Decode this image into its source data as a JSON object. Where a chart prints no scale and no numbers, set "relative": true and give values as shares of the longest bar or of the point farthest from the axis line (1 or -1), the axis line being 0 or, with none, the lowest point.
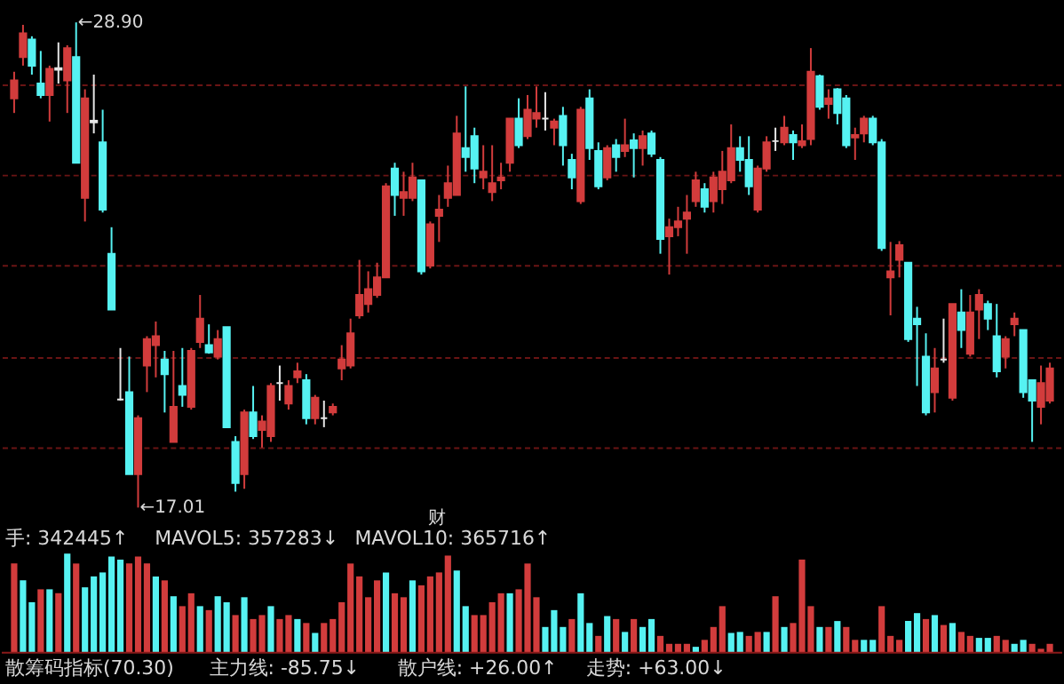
{
  "chart_data": [
    {
      "type": "candlestick",
      "categories": [
        null,
        null,
        null,
        null,
        null,
        null,
        null,
        null,
        null,
        null,
        null,
        null,
        null,
        null,
        null,
        null,
        null,
        null,
        null,
        null,
        null,
        null,
        null,
        null,
        null,
        null,
        null,
        null,
        null,
        null,
        null,
        null,
        null,
        null,
        null,
        null,
        null,
        null,
        null,
        null,
        null,
        null,
        null,
        null,
        null,
        null,
        null,
        null,
        null,
        null,
        null,
        null,
        null,
        null,
        null,
        null,
        null,
        null,
        null,
        null,
        null,
        null,
        null,
        null,
        null,
        null,
        null,
        null,
        null,
        null,
        null,
        null,
        null,
        null,
        null,
        null,
        null,
        null,
        null,
        null,
        null,
        null,
        null,
        null,
        null,
        null,
        null,
        null,
        null,
        null,
        null,
        null,
        null,
        null,
        null,
        null,
        null,
        null,
        null,
        null,
        null,
        null,
        null,
        null,
        null,
        null,
        null,
        null,
        null,
        null,
        null,
        null,
        null,
        null,
        null,
        null,
        null,
        null
      ],
      "ohlc": [
        [
          27.04,
          27.69,
          26.68,
          27.48
        ],
        [
          28.05,
          28.84,
          27.84,
          28.63
        ],
        [
          28.48,
          28.56,
          27.62,
          27.84
        ],
        [
          27.4,
          28.2,
          27.04,
          27.12
        ],
        [
          27.12,
          27.84,
          26.47,
          27.76
        ],
        [
          27.74,
          28.41,
          27.4,
          27.78
        ],
        [
          27.48,
          28.34,
          26.68,
          28.27
        ],
        [
          28.05,
          28.9,
          25.46,
          25.46
        ],
        [
          24.6,
          27.26,
          24.02,
          27.04
        ],
        [
          26.45,
          27.62,
          26.18,
          26.49
        ],
        [
          25.96,
          26.76,
          24.24,
          24.31
        ],
        [
          23.23,
          23.88,
          21.86,
          21.86
        ],
        [
          19.66,
          20.92,
          19.63,
          19.66
        ],
        [
          19.84,
          20.71,
          17.83,
          17.83
        ],
        [
          17.83,
          19.27,
          17.01,
          19.2
        ],
        [
          20.49,
          21.21,
          19.84,
          21.14
        ],
        [
          20.99,
          21.57,
          20.2,
          21.21
        ],
        [
          20.64,
          20.85,
          19.34,
          20.28
        ],
        [
          18.62,
          20.85,
          18.62,
          19.48
        ],
        [
          19.99,
          20.92,
          19.48,
          19.77
        ],
        [
          19.48,
          20.92,
          19.41,
          20.85
        ],
        [
          21.07,
          22.22,
          20.92,
          21.64
        ],
        [
          20.99,
          21.5,
          20.78,
          20.81
        ],
        [
          20.71,
          21.36,
          20.64,
          21.14
        ],
        [
          21.43,
          21.43,
          18.98,
          18.98
        ],
        [
          18.62,
          18.76,
          17.4,
          17.61
        ],
        [
          17.83,
          19.41,
          17.47,
          19.34
        ],
        [
          19.34,
          19.99,
          18.69,
          18.76
        ],
        [
          18.91,
          19.27,
          18.48,
          19.12
        ],
        [
          18.76,
          20.06,
          18.62,
          19.99
        ],
        [
          20.06,
          20.49,
          19.63,
          20.06
        ],
        [
          19.56,
          20.13,
          19.41,
          19.99
        ],
        [
          20.2,
          20.56,
          20.06,
          20.35
        ],
        [
          20.13,
          20.28,
          19.05,
          19.2
        ],
        [
          19.2,
          19.77,
          19.05,
          19.7
        ],
        [
          19.2,
          19.63,
          18.98,
          19.2
        ],
        [
          19.34,
          19.56,
          19.27,
          19.48
        ],
        [
          20.42,
          20.99,
          20.13,
          20.64
        ],
        [
          20.49,
          21.64,
          20.42,
          21.28
        ],
        [
          21.72,
          23.08,
          21.64,
          22.22
        ],
        [
          22.0,
          22.8,
          21.79,
          22.36
        ],
        [
          22.22,
          23.01,
          22.15,
          22.65
        ],
        [
          22.65,
          24.96,
          22.65,
          24.88
        ],
        [
          25.32,
          25.46,
          24.16,
          24.67
        ],
        [
          24.6,
          25.24,
          24.16,
          24.74
        ],
        [
          24.6,
          25.46,
          24.52,
          25.1
        ],
        [
          25.03,
          25.03,
          22.72,
          22.8
        ],
        [
          22.94,
          24.02,
          22.87,
          23.95
        ],
        [
          24.16,
          24.67,
          23.52,
          24.31
        ],
        [
          24.6,
          25.39,
          24.38,
          24.96
        ],
        [
          24.67,
          26.61,
          24.67,
          26.18
        ],
        [
          25.82,
          27.33,
          25.24,
          25.6
        ],
        [
          26.11,
          26.32,
          24.96,
          25.32
        ],
        [
          25.1,
          25.89,
          24.81,
          25.24
        ],
        [
          24.74,
          25.89,
          24.52,
          24.96
        ],
        [
          25.03,
          25.46,
          24.81,
          25.1
        ],
        [
          25.46,
          26.54,
          25.24,
          26.54
        ],
        [
          26.54,
          27.04,
          25.82,
          25.89
        ],
        [
          26.11,
          27.12,
          26.04,
          26.76
        ],
        [
          26.54,
          27.33,
          26.32,
          26.68
        ],
        [
          26.54,
          27.19,
          26.25,
          26.54
        ],
        [
          26.32,
          26.54,
          25.89,
          26.47
        ],
        [
          26.61,
          26.83,
          25.39,
          25.89
        ],
        [
          25.53,
          25.68,
          24.81,
          25.1
        ],
        [
          24.52,
          26.83,
          24.45,
          26.76
        ],
        [
          27.04,
          27.26,
          25.53,
          25.82
        ],
        [
          25.75,
          25.96,
          24.81,
          24.88
        ],
        [
          25.1,
          25.89,
          25.03,
          25.82
        ],
        [
          25.89,
          26.04,
          25.24,
          25.6
        ],
        [
          25.75,
          26.54,
          25.6,
          25.89
        ],
        [
          26.01,
          26.18,
          25.1,
          25.82
        ],
        [
          25.82,
          26.25,
          25.39,
          26.11
        ],
        [
          26.18,
          26.25,
          25.6,
          25.68
        ],
        [
          25.53,
          25.6,
          23.23,
          23.59
        ],
        [
          23.66,
          24.09,
          22.72,
          23.88
        ],
        [
          23.88,
          24.38,
          23.66,
          24.02
        ],
        [
          24.09,
          24.67,
          23.23,
          24.24
        ],
        [
          24.52,
          25.24,
          24.38,
          25.03
        ],
        [
          24.81,
          24.96,
          24.24,
          24.38
        ],
        [
          24.52,
          25.24,
          24.24,
          25.1
        ],
        [
          24.81,
          25.75,
          24.45,
          25.24
        ],
        [
          25.03,
          26.4,
          24.96,
          25.82
        ],
        [
          25.82,
          26.11,
          25.24,
          25.53
        ],
        [
          25.53,
          26.11,
          24.67,
          24.88
        ],
        [
          24.31,
          25.39,
          24.24,
          25.32
        ],
        [
          25.32,
          26.11,
          25.24,
          25.96
        ],
        [
          25.99,
          26.32,
          25.75,
          25.99
        ],
        [
          25.96,
          26.61,
          25.89,
          26.32
        ],
        [
          26.14,
          26.25,
          25.53,
          25.96
        ],
        [
          25.89,
          26.4,
          25.82,
          25.99
        ],
        [
          26.04,
          28.27,
          25.89,
          27.69
        ],
        [
          27.58,
          27.62,
          26.76,
          26.83
        ],
        [
          26.9,
          27.26,
          26.54,
          27.04
        ],
        [
          27.26,
          27.29,
          26.4,
          26.68
        ],
        [
          27.04,
          27.12,
          25.82,
          25.89
        ],
        [
          26.08,
          26.32,
          25.53,
          26.14
        ],
        [
          26.18,
          26.61,
          25.96,
          26.54
        ],
        [
          26.54,
          26.61,
          25.89,
          25.96
        ],
        [
          25.96,
          26.04,
          23.3,
          23.37
        ],
        [
          22.65,
          23.52,
          21.72,
          22.8
        ],
        [
          23.08,
          23.54,
          22.65,
          23.44
        ],
        [
          23.01,
          23.01,
          21.07,
          21.14
        ],
        [
          21.64,
          21.93,
          19.99,
          21.5
        ],
        [
          20.71,
          21.28,
          19.27,
          19.34
        ],
        [
          19.84,
          20.92,
          19.34,
          20.42
        ],
        [
          20.64,
          21.64,
          20.56,
          20.64
        ],
        [
          19.7,
          22.0,
          19.63,
          22.0
        ],
        [
          21.79,
          22.36,
          20.92,
          21.36
        ],
        [
          20.78,
          22.22,
          20.71,
          21.79
        ],
        [
          21.86,
          22.36,
          21.14,
          22.22
        ],
        [
          22.0,
          22.08,
          21.36,
          21.64
        ],
        [
          21.21,
          22.0,
          20.2,
          20.35
        ],
        [
          20.71,
          21.21,
          20.42,
          21.14
        ],
        [
          21.5,
          21.79,
          21.21,
          21.64
        ],
        [
          21.36,
          21.36,
          19.7,
          19.84
        ],
        [
          20.13,
          20.13,
          18.62,
          19.63
        ],
        [
          19.48,
          20.49,
          19.05,
          20.06
        ],
        [
          19.63,
          20.56,
          19.56,
          20.42
        ]
      ],
      "colors": [
        "#d23c3c",
        "#d23c3c",
        "#56f2f2",
        "#56f2f2",
        "#d23c3c",
        "#e6e6e6",
        "#d23c3c",
        "#56f2f2",
        "#d23c3c",
        "#e6e6e6",
        "#56f2f2",
        "#56f2f2",
        "#e6e6e6",
        "#56f2f2",
        "#d23c3c",
        "#d23c3c",
        "#d23c3c",
        "#56f2f2",
        "#d23c3c",
        "#56f2f2",
        "#d23c3c",
        "#d23c3c",
        "#56f2f2",
        "#d23c3c",
        "#56f2f2",
        "#56f2f2",
        "#d23c3c",
        "#56f2f2",
        "#d23c3c",
        "#d23c3c",
        "#e6e6e6",
        "#d23c3c",
        "#d23c3c",
        "#56f2f2",
        "#d23c3c",
        "#e6e6e6",
        "#d23c3c",
        "#d23c3c",
        "#d23c3c",
        "#d23c3c",
        "#d23c3c",
        "#d23c3c",
        "#d23c3c",
        "#56f2f2",
        "#d23c3c",
        "#d23c3c",
        "#56f2f2",
        "#d23c3c",
        "#d23c3c",
        "#d23c3c",
        "#d23c3c",
        "#56f2f2",
        "#56f2f2",
        "#d23c3c",
        "#d23c3c",
        "#d23c3c",
        "#d23c3c",
        "#56f2f2",
        "#d23c3c",
        "#d23c3c",
        "#e6e6e6",
        "#d23c3c",
        "#56f2f2",
        "#56f2f2",
        "#d23c3c",
        "#56f2f2",
        "#56f2f2",
        "#d23c3c",
        "#56f2f2",
        "#d23c3c",
        "#56f2f2",
        "#d23c3c",
        "#56f2f2",
        "#56f2f2",
        "#d23c3c",
        "#d23c3c",
        "#d23c3c",
        "#d23c3c",
        "#56f2f2",
        "#d23c3c",
        "#d23c3c",
        "#d23c3c",
        "#56f2f2",
        "#56f2f2",
        "#d23c3c",
        "#d23c3c",
        "#e6e6e6",
        "#d23c3c",
        "#56f2f2",
        "#d23c3c",
        "#d23c3c",
        "#56f2f2",
        "#d23c3c",
        "#56f2f2",
        "#56f2f2",
        "#d23c3c",
        "#d23c3c",
        "#56f2f2",
        "#56f2f2",
        "#d23c3c",
        "#d23c3c",
        "#56f2f2",
        "#56f2f2",
        "#56f2f2",
        "#d23c3c",
        "#e6e6e6",
        "#d23c3c",
        "#56f2f2",
        "#d23c3c",
        "#d23c3c",
        "#56f2f2",
        "#56f2f2",
        "#d23c3c",
        "#d23c3c",
        "#56f2f2",
        "#56f2f2",
        "#d23c3c",
        "#d23c3c"
      ],
      "yticks": [
        {
          "value": 18.48,
          "label": null
        },
        {
          "value": 20.71,
          "label": null
        },
        {
          "value": 22.94,
          "label": null
        },
        {
          "value": 25.17,
          "label": null
        },
        {
          "value": 27.4,
          "label": null
        }
      ],
      "grid": "y",
      "tick_labels": false,
      "annotations": [
        "←28.90",
        "←17.01",
        "财"
      ]
    },
    {
      "type": "bar",
      "relative": true,
      "tick_labels": false,
      "categories": [
        null,
        null,
        null,
        null,
        null,
        null,
        null,
        null,
        null,
        null,
        null,
        null,
        null,
        null,
        null,
        null,
        null,
        null,
        null,
        null,
        null,
        null,
        null,
        null,
        null,
        null,
        null,
        null,
        null,
        null,
        null,
        null,
        null,
        null,
        null,
        null,
        null,
        null,
        null,
        null,
        null,
        null,
        null,
        null,
        null,
        null,
        null,
        null,
        null,
        null,
        null,
        null,
        null,
        null,
        null,
        null,
        null,
        null,
        null,
        null,
        null,
        null,
        null,
        null,
        null,
        null,
        null,
        null,
        null,
        null,
        null,
        null,
        null,
        null,
        null,
        null,
        null,
        null,
        null,
        null,
        null,
        null,
        null,
        null,
        null,
        null,
        null,
        null,
        null,
        null,
        null,
        null,
        null,
        null,
        null,
        null,
        null,
        null,
        null,
        null,
        null,
        null,
        null,
        null,
        null,
        null,
        null,
        null,
        null,
        null,
        null,
        null,
        null,
        null,
        null,
        null,
        null,
        null
      ],
      "values": [
        0.9,
        0.73,
        0.51,
        0.64,
        0.64,
        0.6,
        1,
        0.9,
        0.66,
        0.77,
        0.81,
        0.97,
        0.94,
        0.9,
        0.97,
        0.9,
        0.77,
        0.73,
        0.57,
        0.47,
        0.6,
        0.47,
        0.43,
        0.57,
        0.51,
        0.38,
        0.56,
        0.34,
        0.38,
        0.47,
        0.34,
        0.38,
        0.34,
        0.3,
        0.2,
        0.3,
        0.34,
        0.51,
        0.9,
        0.77,
        0.56,
        0.73,
        0.81,
        0.6,
        0.56,
        0.73,
        0.68,
        0.77,
        0.81,
        0.98,
        0.83,
        0.47,
        0.38,
        0.38,
        0.51,
        0.6,
        0.6,
        0.64,
        0.9,
        0.56,
        0.26,
        0.43,
        0.26,
        0.34,
        0.6,
        0.3,
        0.17,
        0.37,
        0.34,
        0.21,
        0.34,
        0.26,
        0.34,
        0.17,
        0.09,
        0.09,
        0.09,
        0.06,
        0.13,
        0.26,
        0.47,
        0.2,
        0.21,
        0.17,
        0.21,
        0.21,
        0.57,
        0.26,
        0.3,
        0.94,
        0.47,
        0.26,
        0.26,
        0.32,
        0.26,
        0.13,
        0.13,
        0.13,
        0.47,
        0.17,
        0.13,
        0.32,
        0.4,
        0.34,
        0.38,
        0.28,
        0.3,
        0.21,
        0.17,
        0.15,
        0.15,
        0.17,
        0.13,
        0.09,
        0.13,
        0.09,
        0.04,
        0.09
      ],
      "colors": [
        "#d23c3c",
        "#56f2f2",
        "#56f2f2",
        "#d23c3c",
        "#56f2f2",
        "#d23c3c",
        "#56f2f2",
        "#d23c3c",
        "#56f2f2",
        "#56f2f2",
        "#56f2f2",
        "#56f2f2",
        "#56f2f2",
        "#d23c3c",
        "#d23c3c",
        "#d23c3c",
        "#56f2f2",
        "#d23c3c",
        "#56f2f2",
        "#d23c3c",
        "#d23c3c",
        "#56f2f2",
        "#d23c3c",
        "#56f2f2",
        "#56f2f2",
        "#d23c3c",
        "#56f2f2",
        "#d23c3c",
        "#d23c3c",
        "#56f2f2",
        "#d23c3c",
        "#d23c3c",
        "#56f2f2",
        "#d23c3c",
        "#56f2f2",
        "#d23c3c",
        "#d23c3c",
        "#d23c3c",
        "#d23c3c",
        "#d23c3c",
        "#d23c3c",
        "#d23c3c",
        "#56f2f2",
        "#d23c3c",
        "#d23c3c",
        "#56f2f2",
        "#d23c3c",
        "#d23c3c",
        "#d23c3c",
        "#d23c3c",
        "#56f2f2",
        "#56f2f2",
        "#d23c3c",
        "#d23c3c",
        "#d23c3c",
        "#d23c3c",
        "#56f2f2",
        "#d23c3c",
        "#d23c3c",
        "#d23c3c",
        "#56f2f2",
        "#56f2f2",
        "#56f2f2",
        "#d23c3c",
        "#56f2f2",
        "#56f2f2",
        "#d23c3c",
        "#56f2f2",
        "#d23c3c",
        "#56f2f2",
        "#d23c3c",
        "#56f2f2",
        "#56f2f2",
        "#d23c3c",
        "#d23c3c",
        "#d23c3c",
        "#d23c3c",
        "#56f2f2",
        "#d23c3c",
        "#d23c3c",
        "#d23c3c",
        "#56f2f2",
        "#56f2f2",
        "#d23c3c",
        "#d23c3c",
        "#56f2f2",
        "#d23c3c",
        "#56f2f2",
        "#d23c3c",
        "#d23c3c",
        "#d23c3c",
        "#56f2f2",
        "#d23c3c",
        "#56f2f2",
        "#d23c3c",
        "#d23c3c",
        "#56f2f2",
        "#56f2f2",
        "#d23c3c",
        "#d23c3c",
        "#d23c3c",
        "#56f2f2",
        "#56f2f2",
        "#d23c3c",
        "#56f2f2",
        "#d23c3c",
        "#56f2f2",
        "#d23c3c",
        "#d23c3c",
        "#56f2f2",
        "#56f2f2",
        "#d23c3c",
        "#d23c3c",
        "#56f2f2",
        "#56f2f2",
        "#d23c3c",
        "#d23c3c",
        "#d23c3c"
      ],
      "annotations": [
        "手: 342445↑",
        "MAVOL5: 357283↓",
        "MAVOL10: 365716↑"
      ]
    },
    {
      "type": "other",
      "annotations": [
        "散筹码指标(70.30)",
        "主力线: -85.75↓",
        "散户线: +26.00↑",
        "走势: +63.00↓"
      ]
    }
  ]
}
